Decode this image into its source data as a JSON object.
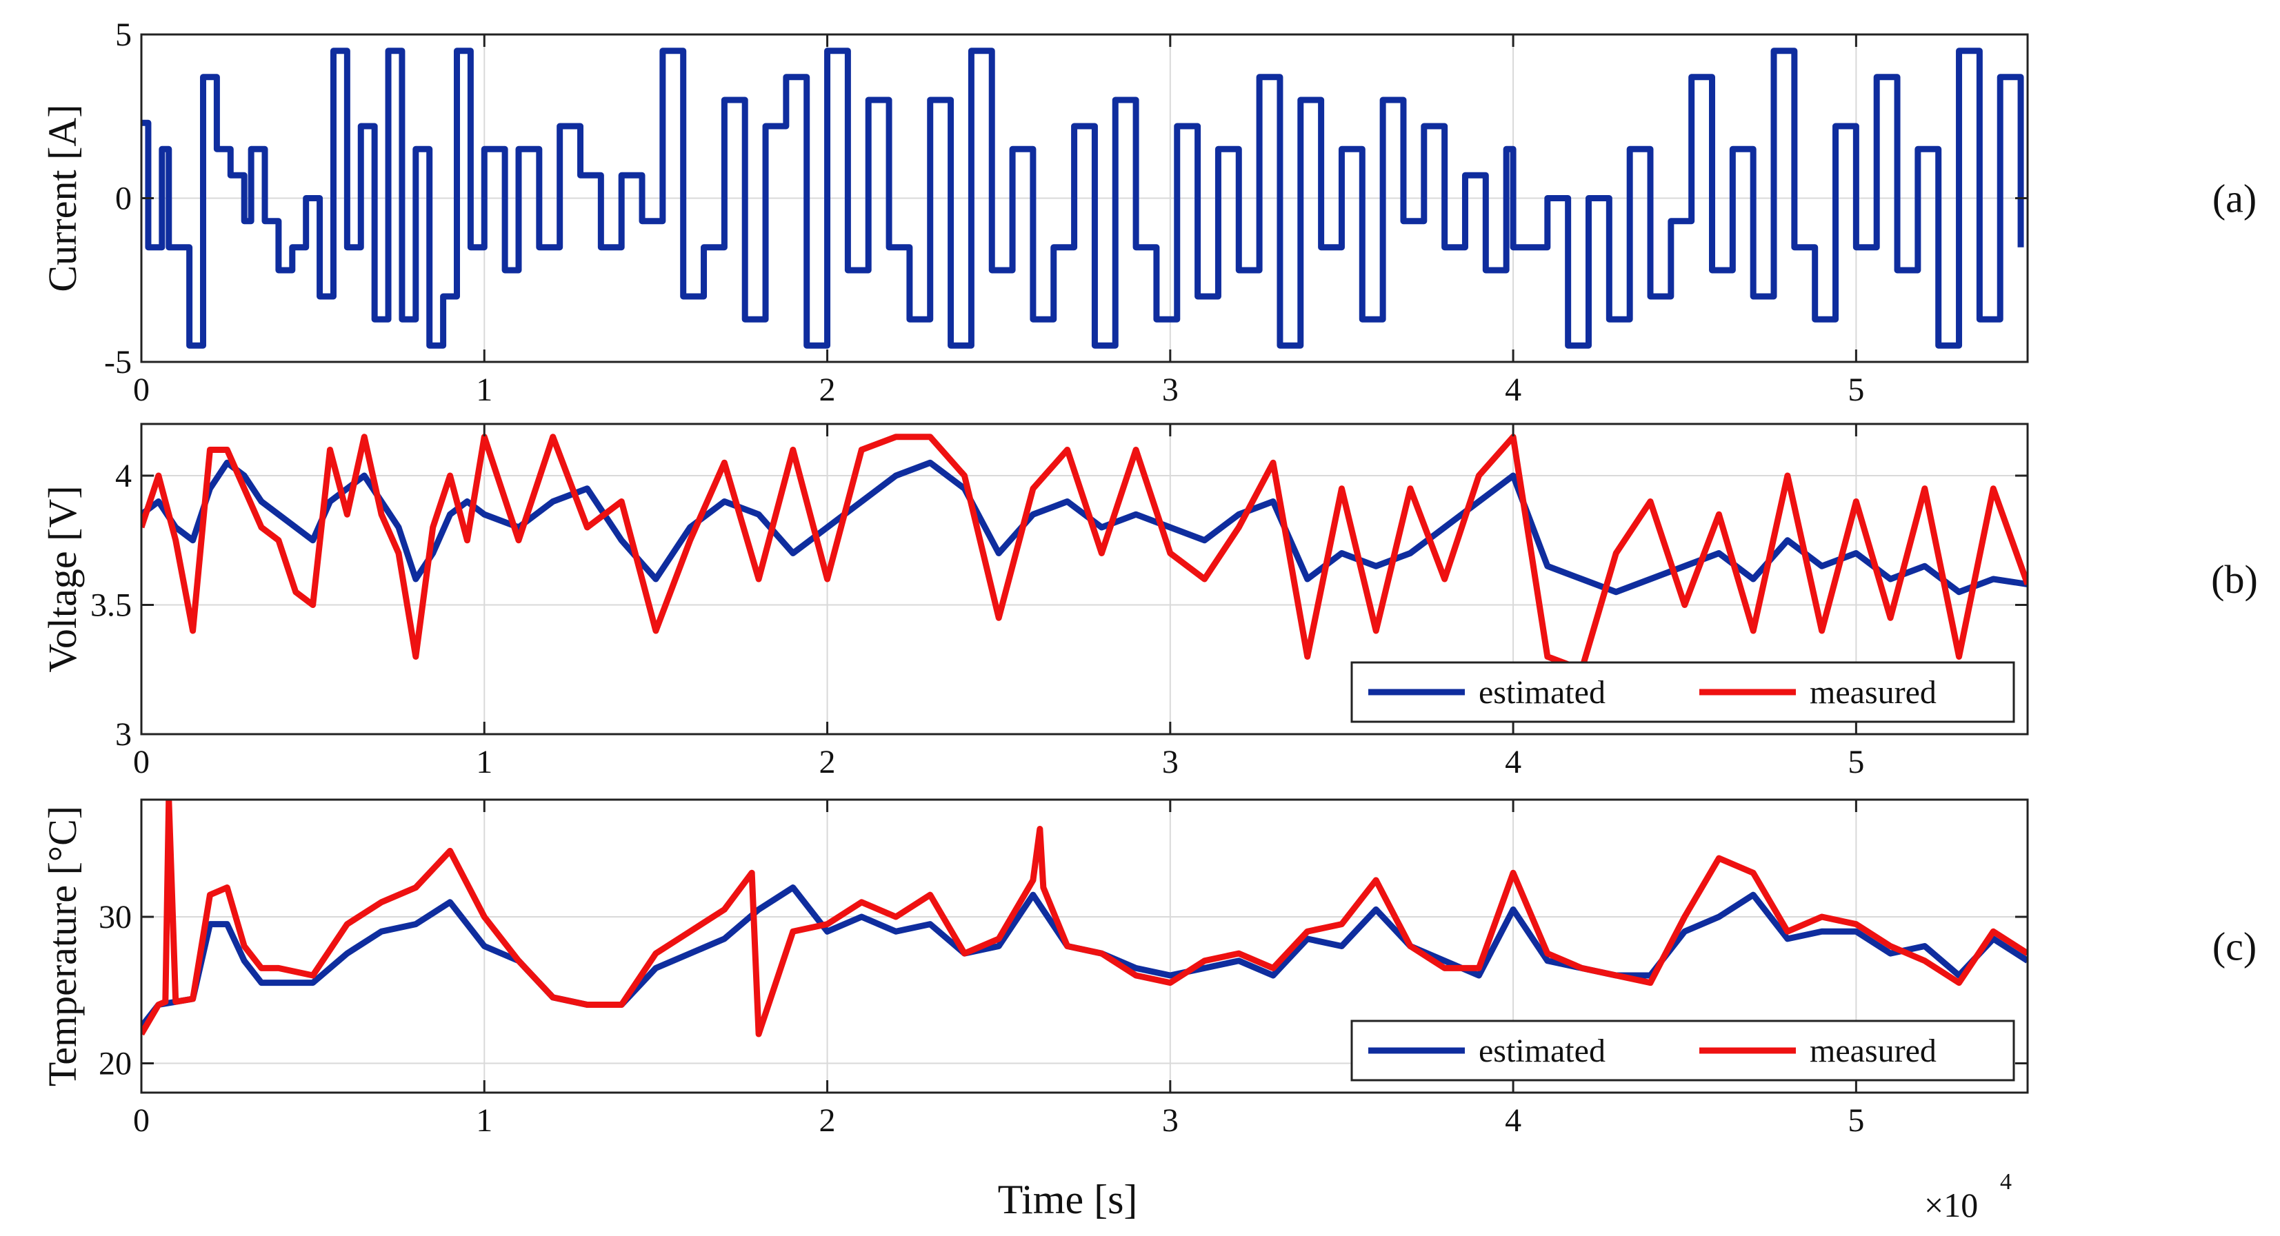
{
  "colors": {
    "estimated": "#0f2d9e",
    "measured": "#ee1111",
    "current": "#0f2d9e",
    "grid": "#d9d9d9",
    "axis": "#222222"
  },
  "x_axis": {
    "label": "Time [s]",
    "multiplier_base": "×10",
    "multiplier_exp": "4",
    "ticks": [
      0,
      1,
      2,
      3,
      4,
      5
    ]
  },
  "chart_data": [
    {
      "id": "a",
      "type": "line",
      "panel_label": "(a)",
      "ylabel": "Current [A]",
      "xlabel": "Time [s]",
      "x_scale_note": "×10^4",
      "xlim": [
        0,
        5.5
      ],
      "ylim": [
        -5,
        5
      ],
      "yticks": [
        -5,
        0,
        5
      ],
      "grid": true,
      "legend": null,
      "series": [
        {
          "name": "current",
          "color": "#0f2d9e",
          "step": true,
          "x": [
            0,
            0.02,
            0.06,
            0.08,
            0.14,
            0.18,
            0.22,
            0.26,
            0.3,
            0.32,
            0.36,
            0.4,
            0.44,
            0.48,
            0.52,
            0.56,
            0.6,
            0.64,
            0.68,
            0.72,
            0.76,
            0.8,
            0.84,
            0.88,
            0.92,
            0.96,
            1.0,
            1.06,
            1.1,
            1.16,
            1.22,
            1.28,
            1.34,
            1.4,
            1.46,
            1.52,
            1.58,
            1.64,
            1.7,
            1.76,
            1.82,
            1.88,
            1.94,
            2.0,
            2.06,
            2.12,
            2.18,
            2.24,
            2.3,
            2.36,
            2.42,
            2.48,
            2.54,
            2.6,
            2.66,
            2.72,
            2.78,
            2.84,
            2.9,
            2.96,
            3.02,
            3.08,
            3.14,
            3.2,
            3.26,
            3.32,
            3.38,
            3.44,
            3.5,
            3.56,
            3.62,
            3.68,
            3.74,
            3.8,
            3.86,
            3.92,
            3.98,
            4.0,
            4.1,
            4.16,
            4.22,
            4.28,
            4.34,
            4.4,
            4.46,
            4.52,
            4.58,
            4.64,
            4.7,
            4.76,
            4.82,
            4.88,
            4.94,
            5.0,
            5.06,
            5.12,
            5.18,
            5.24,
            5.3,
            5.36,
            5.42,
            5.48
          ],
          "y": [
            2.3,
            -1.5,
            1.5,
            -1.5,
            -4.5,
            3.7,
            1.5,
            0.7,
            -0.7,
            1.5,
            -0.7,
            -2.2,
            -1.5,
            0,
            -3.0,
            4.5,
            -1.5,
            2.2,
            -3.7,
            4.5,
            -3.7,
            1.5,
            -4.5,
            -3.0,
            4.5,
            -1.5,
            1.5,
            -2.2,
            1.5,
            -1.5,
            2.2,
            0.7,
            -1.5,
            0.7,
            -0.7,
            4.5,
            -3.0,
            -1.5,
            3.0,
            -3.7,
            2.2,
            3.7,
            -4.5,
            4.5,
            -2.2,
            3.0,
            -1.5,
            -3.7,
            3.0,
            -4.5,
            4.5,
            -2.2,
            1.5,
            -3.7,
            -1.5,
            2.2,
            -4.5,
            3.0,
            -1.5,
            -3.7,
            2.2,
            -3.0,
            1.5,
            -2.2,
            3.7,
            -4.5,
            3.0,
            -1.5,
            1.5,
            -3.7,
            3.0,
            -0.7,
            2.2,
            -1.5,
            0.7,
            -2.2,
            1.5,
            -1.5,
            0,
            -4.5,
            0,
            -3.7,
            1.5,
            -3.0,
            -0.7,
            3.7,
            -2.2,
            1.5,
            -3.0,
            4.5,
            -1.5,
            -3.7,
            2.2,
            -1.5,
            3.7,
            -2.2,
            1.5,
            -4.5,
            4.5,
            -3.7,
            3.7,
            -1.5
          ]
        }
      ]
    },
    {
      "id": "b",
      "type": "line",
      "panel_label": "(b)",
      "ylabel": "Voltage [V]",
      "xlabel": "Time [s]",
      "x_scale_note": "×10^4",
      "xlim": [
        0,
        5.5
      ],
      "ylim": [
        3,
        4.2
      ],
      "yticks": [
        3,
        3.5,
        4
      ],
      "grid": true,
      "legend": {
        "position": "bottom-right",
        "entries": [
          "estimated",
          "measured"
        ]
      },
      "series": [
        {
          "name": "estimated",
          "color": "#0f2d9e",
          "x": [
            0,
            0.05,
            0.1,
            0.15,
            0.2,
            0.25,
            0.3,
            0.35,
            0.4,
            0.45,
            0.5,
            0.55,
            0.6,
            0.65,
            0.7,
            0.75,
            0.8,
            0.85,
            0.9,
            0.95,
            1.0,
            1.1,
            1.2,
            1.3,
            1.4,
            1.5,
            1.6,
            1.7,
            1.8,
            1.9,
            2.0,
            2.1,
            2.2,
            2.3,
            2.4,
            2.5,
            2.6,
            2.7,
            2.8,
            2.9,
            3.0,
            3.1,
            3.2,
            3.3,
            3.4,
            3.5,
            3.6,
            3.7,
            3.8,
            3.9,
            4.0,
            4.1,
            4.2,
            4.3,
            4.4,
            4.5,
            4.6,
            4.7,
            4.8,
            4.9,
            5.0,
            5.1,
            5.2,
            5.3,
            5.4,
            5.5
          ],
          "y": [
            3.85,
            3.9,
            3.8,
            3.75,
            3.95,
            4.05,
            4.0,
            3.9,
            3.85,
            3.8,
            3.75,
            3.9,
            3.95,
            4.0,
            3.9,
            3.8,
            3.6,
            3.7,
            3.85,
            3.9,
            3.85,
            3.8,
            3.9,
            3.95,
            3.75,
            3.6,
            3.8,
            3.9,
            3.85,
            3.7,
            3.8,
            3.9,
            4.0,
            4.05,
            3.95,
            3.7,
            3.85,
            3.9,
            3.8,
            3.85,
            3.8,
            3.75,
            3.85,
            3.9,
            3.6,
            3.7,
            3.65,
            3.7,
            3.8,
            3.9,
            4.0,
            3.65,
            3.6,
            3.55,
            3.6,
            3.65,
            3.7,
            3.6,
            3.75,
            3.65,
            3.7,
            3.6,
            3.65,
            3.55,
            3.6,
            3.58
          ]
        },
        {
          "name": "measured",
          "color": "#ee1111",
          "x": [
            0,
            0.05,
            0.1,
            0.15,
            0.2,
            0.25,
            0.3,
            0.35,
            0.4,
            0.45,
            0.5,
            0.55,
            0.6,
            0.65,
            0.7,
            0.75,
            0.8,
            0.85,
            0.9,
            0.95,
            1.0,
            1.1,
            1.2,
            1.3,
            1.4,
            1.5,
            1.6,
            1.7,
            1.8,
            1.9,
            2.0,
            2.1,
            2.2,
            2.3,
            2.4,
            2.5,
            2.6,
            2.7,
            2.8,
            2.9,
            3.0,
            3.1,
            3.2,
            3.3,
            3.4,
            3.5,
            3.6,
            3.7,
            3.8,
            3.9,
            4.0,
            4.1,
            4.2,
            4.3,
            4.4,
            4.5,
            4.6,
            4.7,
            4.8,
            4.9,
            5.0,
            5.1,
            5.2,
            5.3,
            5.4,
            5.5
          ],
          "y": [
            3.8,
            4.0,
            3.75,
            3.4,
            4.1,
            4.1,
            3.95,
            3.8,
            3.75,
            3.55,
            3.5,
            4.1,
            3.85,
            4.15,
            3.85,
            3.7,
            3.3,
            3.8,
            4.0,
            3.75,
            4.15,
            3.75,
            4.15,
            3.8,
            3.9,
            3.4,
            3.75,
            4.05,
            3.6,
            4.1,
            3.6,
            4.1,
            4.15,
            4.15,
            4.0,
            3.45,
            3.95,
            4.1,
            3.7,
            4.1,
            3.7,
            3.6,
            3.8,
            4.05,
            3.3,
            3.95,
            3.4,
            3.95,
            3.6,
            4.0,
            4.15,
            3.3,
            3.25,
            3.7,
            3.9,
            3.5,
            3.85,
            3.4,
            4.0,
            3.4,
            3.9,
            3.45,
            3.95,
            3.3,
            3.95,
            3.58
          ]
        }
      ]
    },
    {
      "id": "c",
      "type": "line",
      "panel_label": "(c)",
      "ylabel": "Temperature [°C]",
      "xlabel": "Time [s]",
      "x_scale_note": "×10^4",
      "xlim": [
        0,
        5.5
      ],
      "ylim": [
        18,
        38
      ],
      "yticks": [
        20,
        30
      ],
      "grid": true,
      "legend": {
        "position": "bottom-right",
        "entries": [
          "estimated",
          "measured"
        ]
      },
      "series": [
        {
          "name": "estimated",
          "color": "#0f2d9e",
          "x": [
            0,
            0.05,
            0.1,
            0.15,
            0.2,
            0.25,
            0.3,
            0.35,
            0.4,
            0.5,
            0.6,
            0.7,
            0.8,
            0.9,
            1.0,
            1.1,
            1.2,
            1.3,
            1.4,
            1.5,
            1.6,
            1.7,
            1.8,
            1.9,
            2.0,
            2.1,
            2.2,
            2.3,
            2.4,
            2.5,
            2.6,
            2.7,
            2.8,
            2.9,
            3.0,
            3.1,
            3.2,
            3.3,
            3.4,
            3.5,
            3.6,
            3.7,
            3.8,
            3.9,
            4.0,
            4.1,
            4.2,
            4.3,
            4.4,
            4.5,
            4.6,
            4.7,
            4.8,
            4.9,
            5.0,
            5.1,
            5.2,
            5.3,
            5.4,
            5.5
          ],
          "y": [
            22.5,
            24.0,
            24.2,
            24.4,
            29.5,
            29.5,
            27.0,
            25.5,
            25.5,
            25.5,
            27.5,
            29.0,
            29.5,
            31.0,
            28.0,
            27.0,
            24.5,
            24.0,
            24.0,
            26.5,
            27.5,
            28.5,
            30.5,
            32.0,
            29.0,
            30.0,
            29.0,
            29.5,
            27.5,
            28.0,
            31.5,
            28.0,
            27.5,
            26.5,
            26.0,
            26.5,
            27.0,
            26.0,
            28.5,
            28.0,
            30.5,
            28.0,
            27.0,
            26.0,
            30.5,
            27.0,
            26.5,
            26.0,
            26.0,
            29.0,
            30.0,
            31.5,
            28.5,
            29.0,
            29.0,
            27.5,
            28.0,
            26.0,
            28.5,
            27.0
          ]
        },
        {
          "name": "measured",
          "color": "#ee1111",
          "x": [
            0,
            0.05,
            0.07,
            0.08,
            0.1,
            0.15,
            0.2,
            0.25,
            0.3,
            0.35,
            0.4,
            0.5,
            0.6,
            0.7,
            0.8,
            0.9,
            1.0,
            1.1,
            1.2,
            1.3,
            1.4,
            1.5,
            1.6,
            1.7,
            1.78,
            1.8,
            1.9,
            2.0,
            2.1,
            2.2,
            2.3,
            2.4,
            2.5,
            2.6,
            2.62,
            2.63,
            2.7,
            2.8,
            2.9,
            3.0,
            3.1,
            3.2,
            3.3,
            3.4,
            3.5,
            3.6,
            3.7,
            3.8,
            3.9,
            4.0,
            4.1,
            4.2,
            4.3,
            4.4,
            4.5,
            4.6,
            4.7,
            4.8,
            4.9,
            5.0,
            5.1,
            5.2,
            5.3,
            5.4,
            5.5
          ],
          "y": [
            22.0,
            24.0,
            24.2,
            38.0,
            24.2,
            24.4,
            31.5,
            32.0,
            28.0,
            26.5,
            26.5,
            26.0,
            29.5,
            31.0,
            32.0,
            34.5,
            30.0,
            27.0,
            24.5,
            24.0,
            24.0,
            27.5,
            29.0,
            30.5,
            33.0,
            22.0,
            29.0,
            29.5,
            31.0,
            30.0,
            31.5,
            27.5,
            28.5,
            32.5,
            36.0,
            32.0,
            28.0,
            27.5,
            26.0,
            25.5,
            27.0,
            27.5,
            26.5,
            29.0,
            29.5,
            32.5,
            28.0,
            26.5,
            26.5,
            33.0,
            27.5,
            26.5,
            26.0,
            25.5,
            30.0,
            34.0,
            33.0,
            29.0,
            30.0,
            29.5,
            28.0,
            27.0,
            25.5,
            29.0,
            27.5
          ]
        }
      ]
    }
  ]
}
